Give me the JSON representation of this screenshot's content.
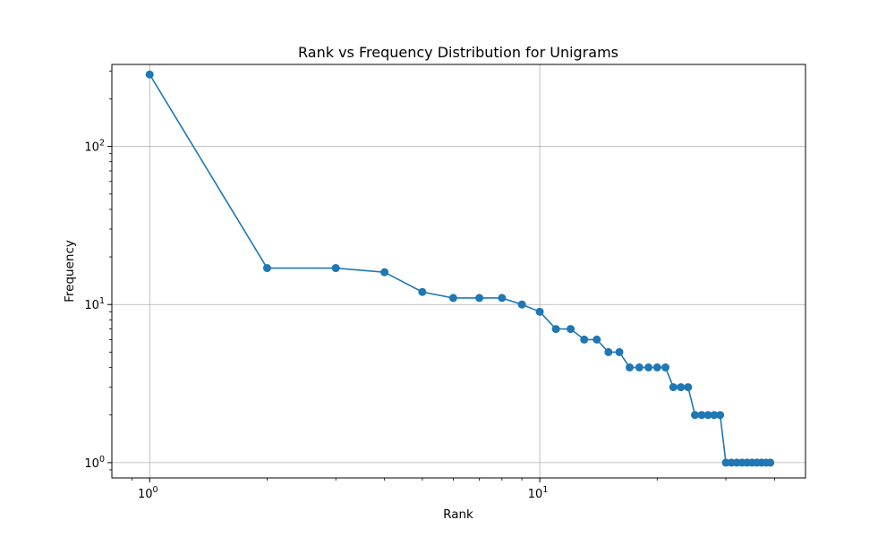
{
  "chart_data": {
    "type": "line",
    "title": "Rank vs Frequency Distribution for Unigrams",
    "xlabel": "Rank",
    "ylabel": "Frequency",
    "xscale": "log",
    "yscale": "log",
    "xlim": [
      0.8,
      48
    ],
    "ylim": [
      0.8,
      330
    ],
    "grid": true,
    "marker": "circle",
    "color": "#1f77b4",
    "x_ticks": [
      {
        "value": 1,
        "base": "10",
        "exp": "0"
      },
      {
        "value": 10,
        "base": "10",
        "exp": "1"
      }
    ],
    "y_ticks": [
      {
        "value": 1,
        "base": "10",
        "exp": "0"
      },
      {
        "value": 10,
        "base": "10",
        "exp": "1"
      },
      {
        "value": 100,
        "base": "10",
        "exp": "2"
      }
    ],
    "series": [
      {
        "x": [
          1,
          2,
          3,
          4,
          5,
          6,
          7,
          8,
          9,
          10,
          11,
          12,
          13,
          14,
          15,
          16,
          17,
          18,
          19,
          20,
          21,
          22,
          23,
          24,
          25,
          26,
          27,
          28,
          29,
          30,
          31,
          32,
          33,
          34,
          35,
          36,
          37,
          38,
          39
        ],
        "y": [
          285,
          17,
          17,
          16,
          12,
          11,
          11,
          11,
          10,
          9,
          7,
          7,
          6,
          6,
          5,
          5,
          4,
          4,
          4,
          4,
          4,
          3,
          3,
          3,
          2,
          2,
          2,
          2,
          2,
          1,
          1,
          1,
          1,
          1,
          1,
          1,
          1,
          1,
          1
        ]
      }
    ]
  }
}
